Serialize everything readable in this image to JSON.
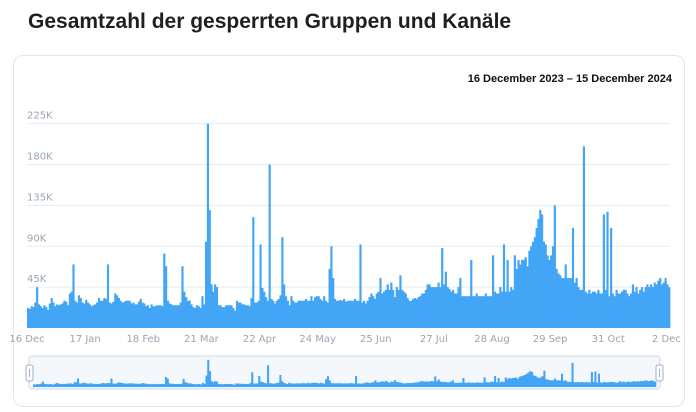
{
  "page": {
    "title": "Gesamtzahl der gesperrten Gruppen und Kanäle",
    "date_range": "16 December 2023 – 15 December 2024"
  },
  "colors": {
    "bar": "#42a5f5",
    "mini_bar": "#42a5f5",
    "grid": "#e8ebef",
    "tick": "#9aa5b1"
  },
  "chart_data": {
    "type": "bar",
    "title": "Gesamtzahl der gesperrten Gruppen und Kanäle",
    "xlabel": "",
    "ylabel": "",
    "ylim": [
      0,
      240000
    ],
    "y_ticks": [
      {
        "value": 45000,
        "label": "45K"
      },
      {
        "value": 90000,
        "label": "90K"
      },
      {
        "value": 135000,
        "label": "135K"
      },
      {
        "value": 180000,
        "label": "180K"
      },
      {
        "value": 225000,
        "label": "225K"
      }
    ],
    "x_ticks": [
      {
        "day": 0,
        "label": "16 Dec"
      },
      {
        "day": 32,
        "label": "17 Jan"
      },
      {
        "day": 64,
        "label": "18 Feb"
      },
      {
        "day": 96,
        "label": "21 Mar"
      },
      {
        "day": 128,
        "label": "22 Apr"
      },
      {
        "day": 160,
        "label": "24 May"
      },
      {
        "day": 192,
        "label": "25 Jun"
      },
      {
        "day": 224,
        "label": "27 Jul"
      },
      {
        "day": 256,
        "label": "28 Aug"
      },
      {
        "day": 288,
        "label": "29 Sep"
      },
      {
        "day": 320,
        "label": "31 Oct"
      },
      {
        "day": 352,
        "label": "2 Dec"
      }
    ],
    "grid": true,
    "legend": "none",
    "values": [
      22000,
      21000,
      24000,
      23000,
      28000,
      45000,
      26000,
      24000,
      22000,
      25000,
      23000,
      20000,
      27000,
      33000,
      28000,
      24000,
      26000,
      25000,
      26000,
      27000,
      30000,
      29000,
      25000,
      38000,
      40000,
      70000,
      30000,
      28000,
      36000,
      33000,
      28000,
      27000,
      31000,
      28000,
      26000,
      24000,
      25000,
      26000,
      28000,
      33000,
      30000,
      30000,
      33000,
      32000,
      70000,
      28000,
      27000,
      29000,
      38000,
      36000,
      33000,
      30000,
      28000,
      29000,
      30000,
      30000,
      30000,
      27000,
      28000,
      26000,
      26000,
      29000,
      32000,
      28000,
      27000,
      24000,
      25000,
      22000,
      26000,
      24000,
      24000,
      25000,
      25000,
      25000,
      24000,
      82000,
      46000,
      30000,
      27000,
      26000,
      25000,
      25000,
      25000,
      25000,
      28000,
      68000,
      40000,
      34000,
      30000,
      30000,
      26000,
      23000,
      22000,
      25000,
      24000,
      22000,
      35000,
      26000,
      23000,
      28000,
      27000,
      48000,
      40000,
      48000,
      45000,
      25000,
      25000,
      23000,
      23000,
      25000,
      25000,
      25000,
      25000,
      22000,
      19000,
      30000,
      28000,
      28000,
      26000,
      26000,
      25000,
      25000,
      24000,
      33000,
      28000,
      28000,
      28000,
      30000,
      92000,
      44000,
      40000,
      34000,
      30000,
      33000,
      32000,
      30000,
      27000,
      30000,
      32000,
      36000,
      100000,
      48000,
      35000,
      30000,
      25000,
      35000,
      30000,
      28000,
      28000,
      30000,
      30000,
      30000,
      30000,
      32000,
      30000,
      30000,
      35000,
      30000,
      34000,
      35000,
      35000,
      32000,
      30000,
      35000,
      30000,
      28000,
      65000,
      90000,
      55000,
      32000,
      30000,
      30000,
      31000,
      30000,
      32000,
      29000,
      30000,
      30000,
      30000,
      30000,
      32000,
      30000,
      30000,
      30000,
      28000,
      30000,
      27000,
      30000,
      34000,
      38000,
      35000,
      32000,
      38000,
      40000,
      55000,
      38000,
      40000,
      42000,
      48000,
      42000,
      50000,
      42000,
      34000,
      45000,
      42000,
      30000,
      42000,
      40000,
      38000,
      33000,
      30000,
      30000,
      32000,
      33000,
      32000,
      34000,
      35000,
      38000,
      38000,
      42000,
      48000,
      48000,
      45000,
      45000,
      45000,
      45000,
      50000,
      45000,
      50000,
      48000,
      62000,
      45000,
      43000,
      40000,
      42000,
      38000,
      38000,
      45000,
      55000,
      35000,
      35000,
      35000,
      35000,
      35000,
      35000,
      35000,
      35000,
      38000,
      35000,
      35000,
      35000,
      35000,
      38000,
      35000,
      35000,
      35000,
      80000,
      40000,
      38000,
      38000,
      45000,
      40000,
      38000,
      40000,
      75000,
      40000,
      45000,
      42000,
      50000,
      65000,
      75000,
      70000,
      75000,
      75000,
      78000,
      68000,
      85000,
      90000,
      95000,
      100000,
      110000,
      120000,
      130000,
      125000,
      95000,
      85000,
      80000,
      75000,
      80000,
      90000,
      75000,
      65000,
      60000,
      58000,
      55000,
      55000,
      60000,
      55000,
      55000,
      55000,
      60000,
      50000,
      55000,
      45000,
      42000,
      42000,
      42000,
      40000,
      38000,
      42000,
      38000,
      40000,
      40000,
      38000,
      42000,
      38000,
      38000,
      40000,
      42000,
      38000,
      35000,
      38000,
      38000,
      35000,
      42000,
      38000,
      38000,
      40000,
      42000,
      42000,
      38000,
      35000,
      38000,
      48000,
      40000,
      45000,
      38000,
      42000,
      45000,
      40000,
      45000,
      48000,
      45000,
      48000,
      45000,
      50000,
      48000,
      52000,
      55000,
      48000,
      50000,
      55000,
      48000,
      45000
    ],
    "spikes": [
      {
        "day": 99,
        "value": 225000
      },
      {
        "day": 100,
        "value": 130000
      },
      {
        "day": 98,
        "value": 95000
      },
      {
        "day": 76,
        "value": 68000
      },
      {
        "day": 124,
        "value": 122000
      },
      {
        "day": 133,
        "value": 180000
      },
      {
        "day": 183,
        "value": 92000
      },
      {
        "day": 205,
        "value": 58000
      },
      {
        "day": 228,
        "value": 88000
      },
      {
        "day": 244,
        "value": 75000
      },
      {
        "day": 262,
        "value": 92000
      },
      {
        "day": 268,
        "value": 80000
      },
      {
        "day": 279,
        "value": 100000
      },
      {
        "day": 285,
        "value": 92000
      },
      {
        "day": 290,
        "value": 135000
      },
      {
        "day": 296,
        "value": 70000
      },
      {
        "day": 300,
        "value": 110000
      },
      {
        "day": 306,
        "value": 200000
      },
      {
        "day": 317,
        "value": 125000
      },
      {
        "day": 319,
        "value": 128000
      },
      {
        "day": 321,
        "value": 110000
      }
    ]
  }
}
